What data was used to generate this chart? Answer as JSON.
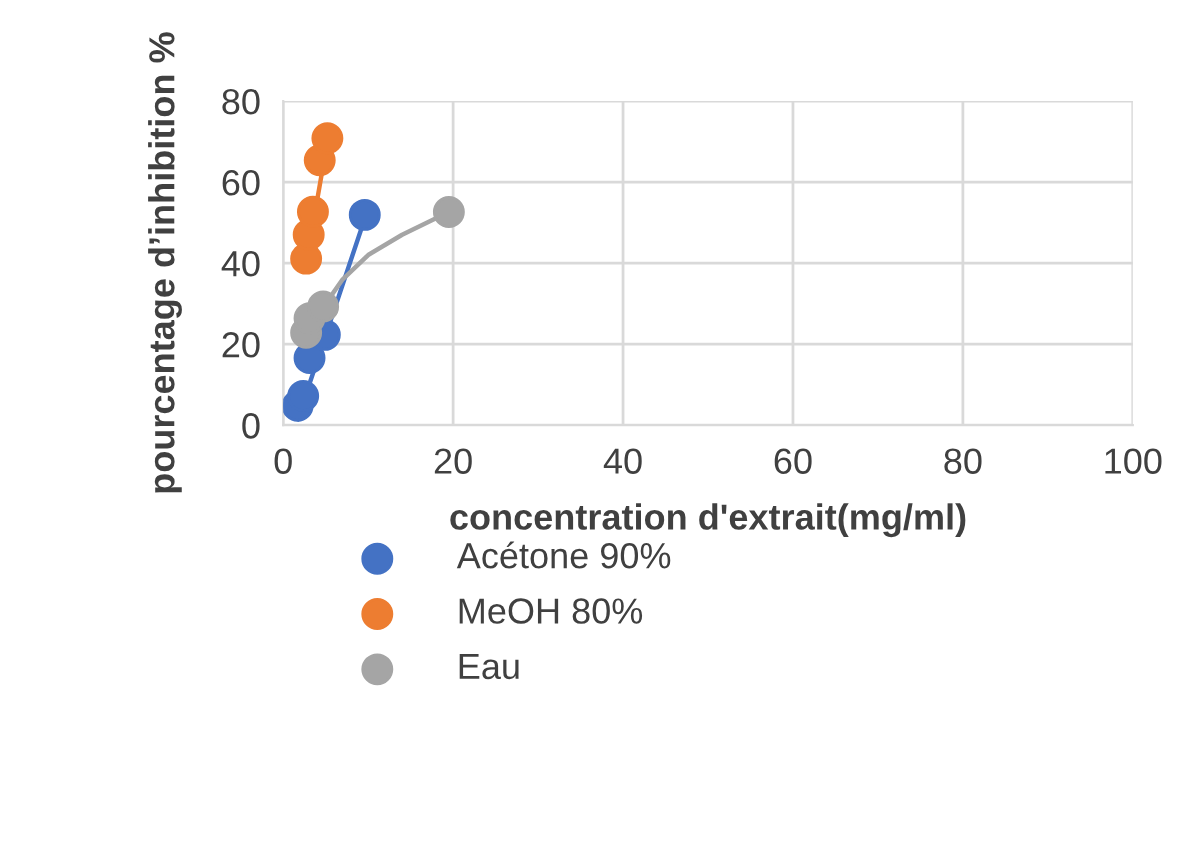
{
  "chart_data": {
    "type": "scatter",
    "xlabel": "concentration d'extrait(mg/ml)",
    "ylabel": "pourcentage d’inhibition %",
    "xlim": [
      0,
      100
    ],
    "xticks": [
      0,
      20,
      40,
      60,
      80,
      100
    ],
    "ylim": [
      0,
      80
    ],
    "yticks": [
      0,
      20,
      40,
      60,
      80
    ],
    "grid": true,
    "legend": "bottom",
    "series": [
      {
        "name": "Acétone 90%",
        "marker": "circle",
        "color": "#4472c4",
        "x": [
          1.7,
          2.35,
          3.1,
          4.9,
          9.6
        ],
        "values": [
          4.8,
          7.2,
          16.6,
          22.3,
          51.9
        ]
      },
      {
        "name": "MeOH 80%",
        "marker": "circle",
        "color": "#ed7d31",
        "x": [
          2.7,
          3.0,
          3.5,
          4.3,
          5.2
        ],
        "values": [
          41.1,
          47,
          52.7,
          65.4,
          70.8
        ]
      },
      {
        "name": "Eau",
        "marker": "circle",
        "color": "#a5a5a5",
        "x": [
          2.7,
          3.1,
          4.7,
          19.5
        ],
        "values": [
          22.8,
          26.4,
          29.3,
          52.6
        ]
      },
      {
        "type": "line",
        "marker": "none",
        "color": "#4472c4",
        "x": [
          1.7,
          9.6
        ],
        "values": [
          1.5,
          51
        ]
      },
      {
        "type": "line",
        "marker": "none",
        "color": "#ed7d31",
        "x": [
          2.7,
          5.2
        ],
        "values": [
          40,
          70
        ]
      },
      {
        "type": "line",
        "marker": "none",
        "color": "#a5a5a5",
        "x": [
          3,
          4,
          5,
          7,
          10,
          14,
          19.5
        ],
        "values": [
          19,
          26,
          30,
          36,
          42,
          47,
          52.6
        ]
      }
    ]
  }
}
